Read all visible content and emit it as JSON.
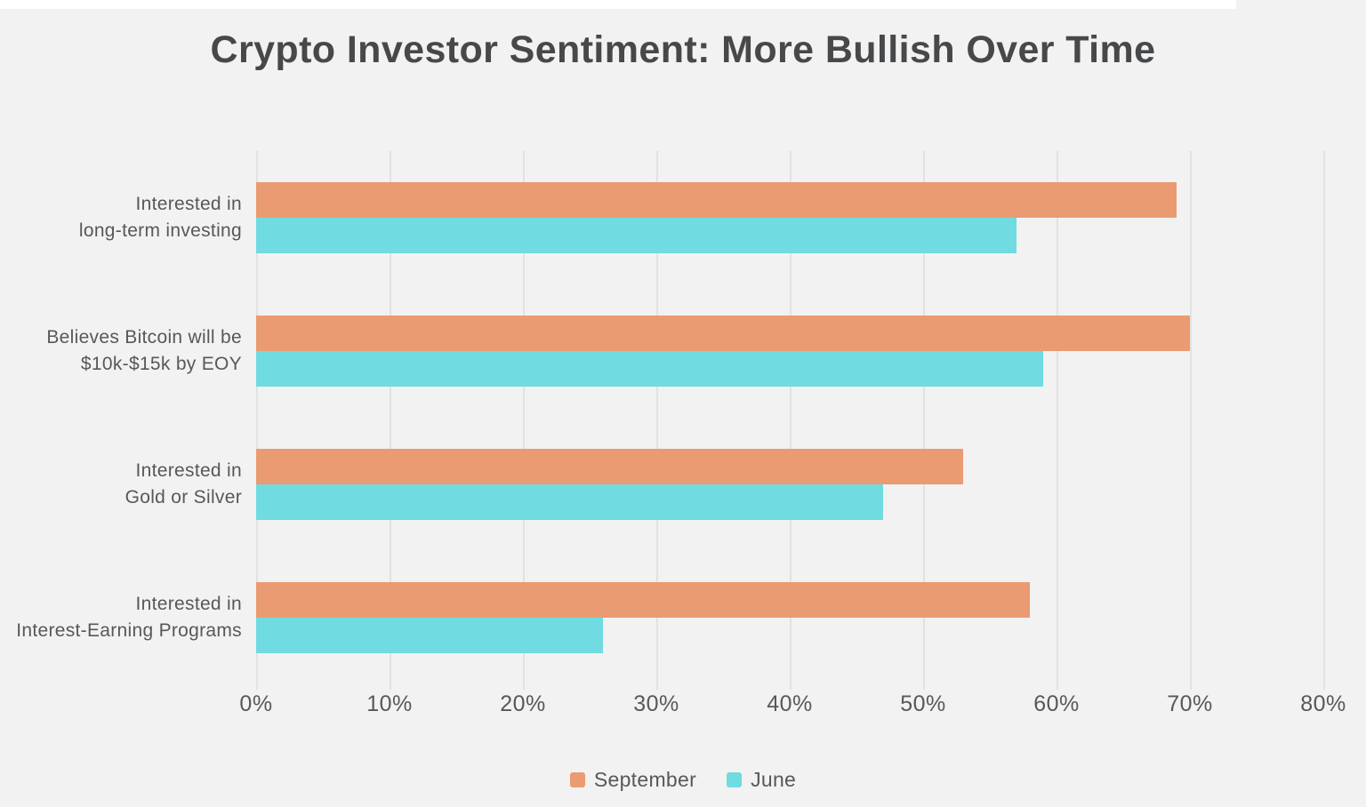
{
  "colors": {
    "september": "#EA9B71",
    "june": "#70DBE0",
    "background": "#F2F2F2",
    "gridline": "#E2E2E2",
    "title_text": "#47484A",
    "label_text": "#57585A",
    "white_strip": "#FFFFFF"
  },
  "chart_data": {
    "type": "bar",
    "orientation": "horizontal",
    "title": "Crypto Investor Sentiment: More Bullish Over Time",
    "categories": [
      "Interested in long-term investing",
      "Believes Bitcoin will be $10k-$15k by EOY",
      "Interested in Gold or Silver",
      "Interested in Interest-Earning Programs"
    ],
    "category_lines": [
      [
        "Interested in",
        "long-term investing"
      ],
      [
        "Believes Bitcoin will be",
        "$10k-$15k by EOY"
      ],
      [
        "Interested in",
        "Gold or Silver"
      ],
      [
        "Interested in",
        "Interest-Earning Programs"
      ]
    ],
    "series": [
      {
        "name": "September",
        "color": "#EA9B71",
        "values": [
          69,
          70,
          53,
          58
        ]
      },
      {
        "name": "June",
        "color": "#70DBE0",
        "values": [
          57,
          59,
          47,
          26
        ]
      }
    ],
    "x_axis": {
      "min": 0,
      "max": 80,
      "tick_step": 10,
      "tick_labels": [
        "0%",
        "10%",
        "20%",
        "30%",
        "40%",
        "50%",
        "60%",
        "70%",
        "80%"
      ],
      "unit": "%"
    },
    "grid": true,
    "legend_position": "bottom"
  }
}
